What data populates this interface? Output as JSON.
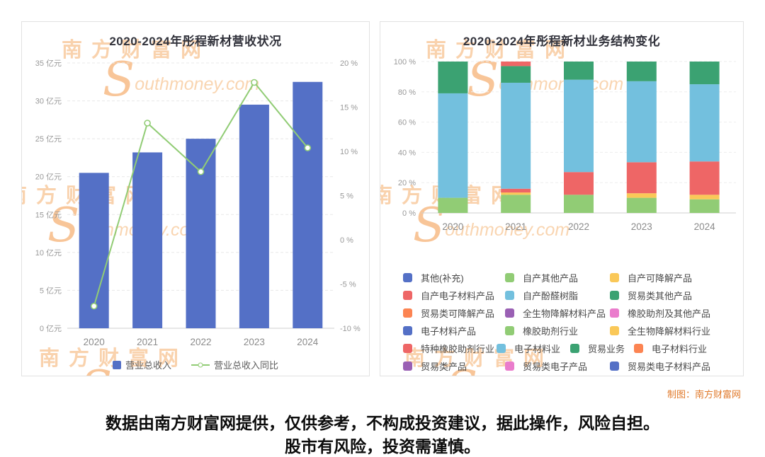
{
  "page": {
    "credit": "制图：南方财富网",
    "disclaimer_line1": "数据由南方财富网提供，仅供参考，不构成投资建议，据此操作，风险自担。",
    "disclaimer_line2": "股市有风险，投资需谨慎。",
    "watermark": {
      "cn": "南方财富网",
      "s": "S",
      "en": "outhmoney.com"
    }
  },
  "chart_data": [
    {
      "type": "bar",
      "title": "2020-2024年彤程新材营收状况",
      "categories": [
        "2020",
        "2021",
        "2022",
        "2023",
        "2024"
      ],
      "series": [
        {
          "name": "营业总收入",
          "type": "bar",
          "unit": "亿元",
          "color": "#5470c6",
          "axis": "left",
          "values": [
            20.5,
            23.2,
            25.0,
            29.5,
            32.5
          ]
        },
        {
          "name": "营业总收入同比",
          "type": "line",
          "unit": "%",
          "color": "#91cc75",
          "axis": "right",
          "values": [
            -7.5,
            13.2,
            7.7,
            17.8,
            10.4
          ]
        }
      ],
      "left_axis": {
        "min": 0,
        "max": 35,
        "step": 5,
        "unit": "亿元",
        "labels": [
          "0 亿元",
          "5 亿元",
          "10 亿元",
          "15 亿元",
          "20 亿元",
          "25 亿元",
          "30 亿元",
          "35 亿元"
        ]
      },
      "right_axis": {
        "min": -10,
        "max": 20,
        "step": 5,
        "unit": "%",
        "labels": [
          "-10 %",
          "-5 %",
          "0 %",
          "5 %",
          "10 %",
          "15 %",
          "20 %"
        ]
      },
      "legend": [
        {
          "label": "营业总收入",
          "color": "#5470c6",
          "icon": "square"
        },
        {
          "label": "营业总收入同比",
          "color": "#91cc75",
          "icon": "line-circle"
        }
      ],
      "grid": true,
      "legend_position": "bottom"
    },
    {
      "type": "stacked-bar-100",
      "title": "2020-2024年彤程新材业务结构变化",
      "categories": [
        "2020",
        "2021",
        "2022",
        "2023",
        "2024"
      ],
      "y_axis": {
        "min": 0,
        "max": 100,
        "step": 20,
        "labels": [
          "0 %",
          "20 %",
          "40 %",
          "60 %",
          "80 %",
          "100 %"
        ]
      },
      "stacks": {
        "2020": [
          {
            "name": "橡胶助剂行业",
            "color": "#91cc75",
            "value": 10
          },
          {
            "name": "电子材料业",
            "color": "#73c0de",
            "value": 69
          },
          {
            "name": "贸易业务",
            "color": "#3ba272",
            "value": 21
          }
        ],
        "2021": [
          {
            "name": "自产其他产品",
            "color": "#91cc75",
            "value": 12
          },
          {
            "name": "自产可降解产品",
            "color": "#fac858",
            "value": 1.5
          },
          {
            "name": "自产电子材料产品",
            "color": "#ee6666",
            "value": 2.5
          },
          {
            "name": "自产酚醛树脂",
            "color": "#73c0de",
            "value": 70
          },
          {
            "name": "贸易类其他产品",
            "color": "#3ba272",
            "value": 11
          },
          {
            "name": "特种橡胶助剂行业",
            "color": "#ee6666",
            "value": 3
          }
        ],
        "2022": [
          {
            "name": "自产其他产品",
            "color": "#91cc75",
            "value": 12
          },
          {
            "name": "自产电子材料产品",
            "color": "#ee6666",
            "value": 15
          },
          {
            "name": "自产酚醛树脂",
            "color": "#73c0de",
            "value": 61
          },
          {
            "name": "贸易类其他产品",
            "color": "#3ba272",
            "value": 12
          }
        ],
        "2023": [
          {
            "name": "自产其他产品",
            "color": "#91cc75",
            "value": 10
          },
          {
            "name": "自产可降解产品",
            "color": "#fac858",
            "value": 3
          },
          {
            "name": "自产电子材料产品",
            "color": "#ee6666",
            "value": 20.5
          },
          {
            "name": "自产酚醛树脂",
            "color": "#73c0de",
            "value": 53.5
          },
          {
            "name": "贸易类其他产品",
            "color": "#3ba272",
            "value": 13
          }
        ],
        "2024": [
          {
            "name": "自产其他产品",
            "color": "#91cc75",
            "value": 9
          },
          {
            "name": "自产可降解产品",
            "color": "#fac858",
            "value": 3
          },
          {
            "name": "自产电子材料产品",
            "color": "#ee6666",
            "value": 22
          },
          {
            "name": "自产酚醛树脂",
            "color": "#73c0de",
            "value": 51
          },
          {
            "name": "贸易类其他产品",
            "color": "#3ba272",
            "value": 15
          }
        ]
      },
      "legend_rows": [
        [
          {
            "label": "其他(补充)",
            "color": "#5470c6"
          },
          {
            "label": "自产其他产品",
            "color": "#91cc75"
          },
          {
            "label": "自产可降解产品",
            "color": "#fac858"
          }
        ],
        [
          {
            "label": "自产电子材料产品",
            "color": "#ee6666"
          },
          {
            "label": "自产酚醛树脂",
            "color": "#73c0de"
          },
          {
            "label": "贸易类其他产品",
            "color": "#3ba272"
          }
        ],
        [
          {
            "label": "贸易类可降解产品",
            "color": "#fc8452"
          },
          {
            "label": "全生物降解材料产品",
            "color": "#9a60b4"
          },
          {
            "label": "橡胶助剂及其他产品",
            "color": "#ea7ccc"
          }
        ],
        [
          {
            "label": "电子材料产品",
            "color": "#5470c6"
          },
          {
            "label": "橡胶助剂行业",
            "color": "#91cc75"
          },
          {
            "label": "全生物降解材料行业",
            "color": "#fac858"
          }
        ],
        [
          {
            "label": "特种橡胶助剂行业",
            "color": "#ee6666"
          },
          {
            "label": "电子材料业",
            "color": "#73c0de"
          },
          {
            "label": "贸易业务",
            "color": "#3ba272"
          },
          {
            "label": "电子材料行业",
            "color": "#fc8452"
          }
        ],
        [
          {
            "label": "贸易类产品",
            "color": "#9a60b4"
          },
          {
            "label": "贸易类电子产品",
            "color": "#ea7ccc"
          },
          {
            "label": "贸易类电子材料产品",
            "color": "#5470c6"
          }
        ]
      ],
      "grid": true,
      "legend_position": "bottom"
    }
  ]
}
